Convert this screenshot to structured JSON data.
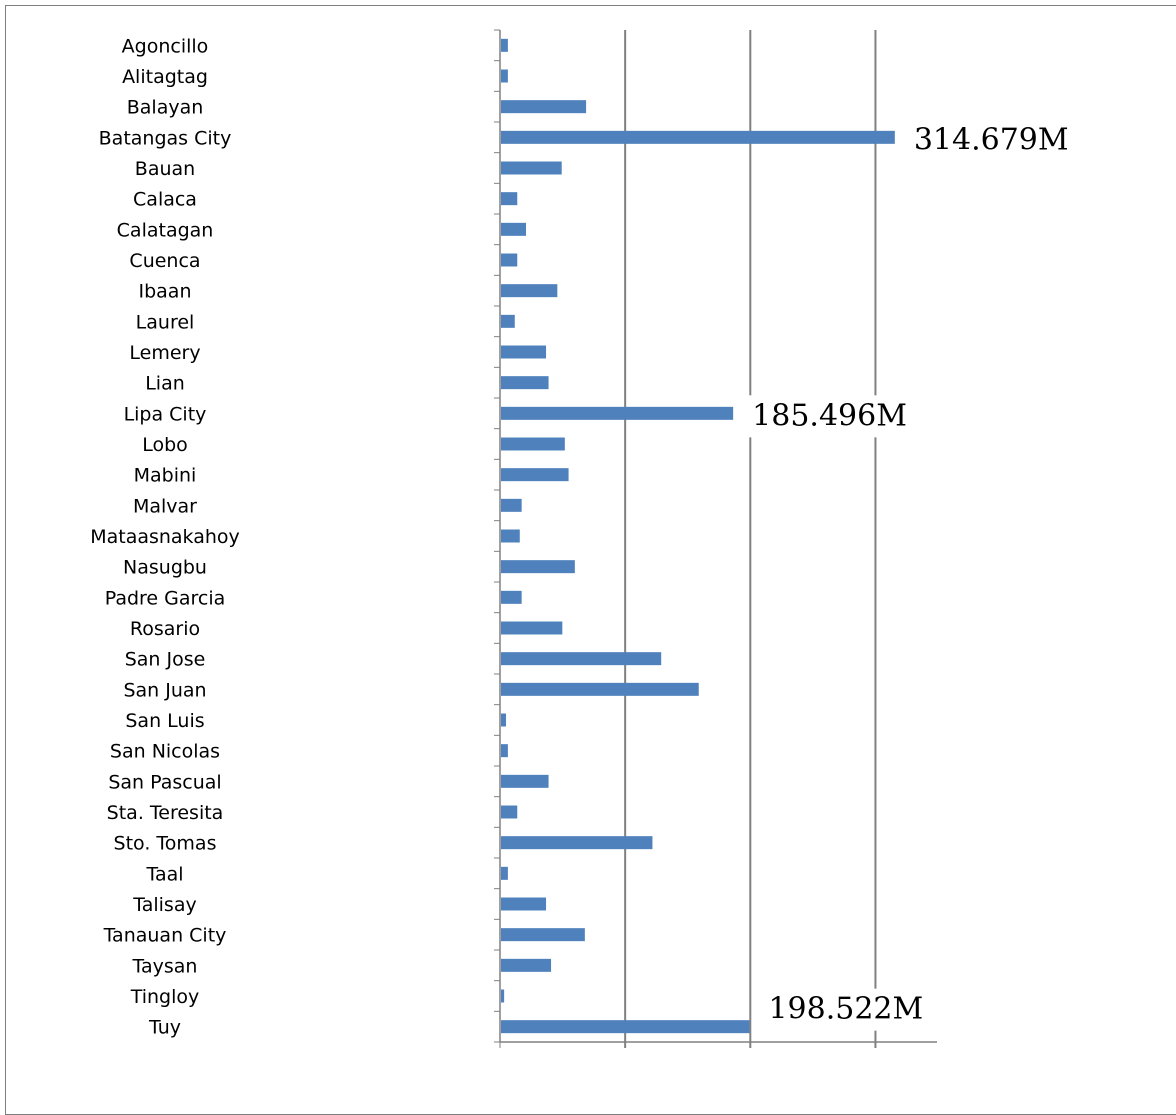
{
  "chart_data": {
    "type": "bar",
    "orientation": "horizontal",
    "title": "",
    "xlabel": "",
    "ylabel": "",
    "grid": true,
    "xlim": [
      0,
      350
    ],
    "bar_color": "#4f81bd",
    "categories": [
      "Agoncillo",
      "Alitagtag",
      "Balayan",
      "Batangas  City",
      "Bauan",
      "Calaca",
      "Calatagan",
      "Cuenca",
      "Ibaan",
      "Laurel",
      "Lemery",
      "Lian",
      "Lipa City",
      "Lobo",
      "Mabini",
      "Malvar",
      "Mataasnakahoy",
      "Nasugbu",
      "Padre Garcia",
      "Rosario",
      "San Jose",
      "San Juan",
      "San Luis",
      "San Nicolas",
      "San Pascual",
      "Sta. Teresita",
      "Sto. Tomas",
      "Taal",
      "Talisay",
      "Tanauan  City",
      "Taysan",
      "Tingloy",
      "Tuy"
    ],
    "values": [
      5.5,
      5.5,
      68,
      314.679,
      48.5,
      13,
      20,
      13,
      45,
      11,
      36,
      38,
      185.496,
      51,
      54,
      16.5,
      15,
      59,
      16.5,
      49,
      128,
      158,
      4,
      5.5,
      38,
      13,
      121,
      5.5,
      36,
      67,
      40,
      2.5,
      198.522
    ],
    "annotations": [
      {
        "category_index": 3,
        "text": "314.679M"
      },
      {
        "category_index": 12,
        "text": "185.496M"
      },
      {
        "category_index": 32,
        "text": "198.522M"
      }
    ]
  }
}
